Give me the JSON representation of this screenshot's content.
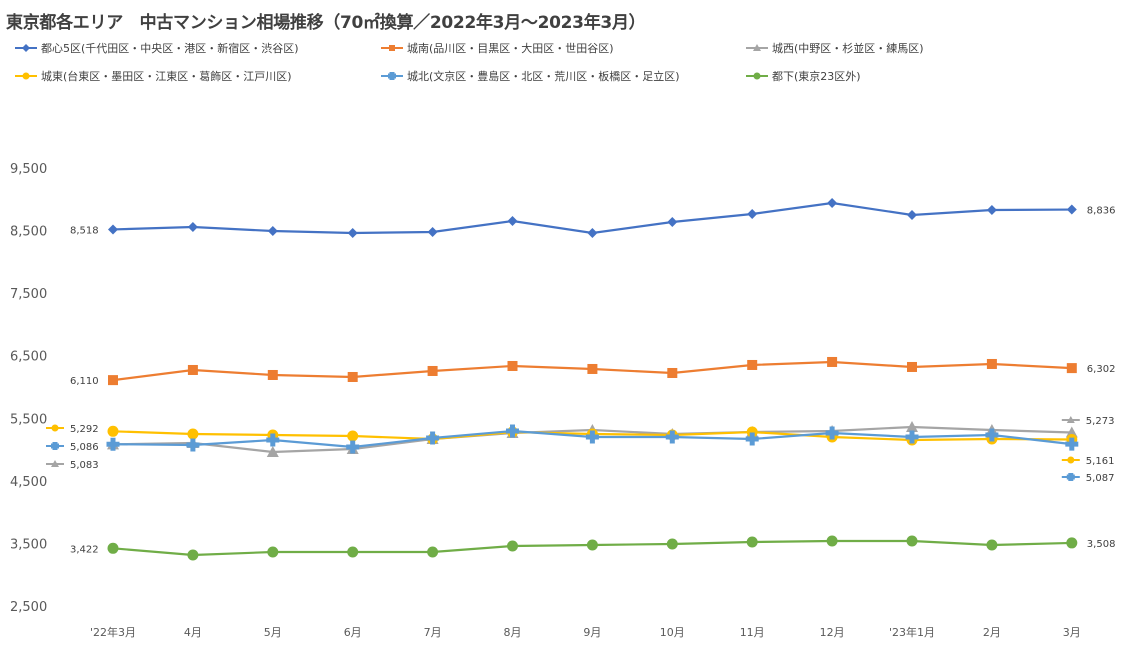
{
  "chart_data": {
    "type": "line",
    "title": "東京都各エリア　中古マンション相場推移（70㎡換算／2022年3月～2023年3月）",
    "xlabel": "",
    "ylabel": "",
    "categories": [
      "'22年3月",
      "4月",
      "5月",
      "6月",
      "7月",
      "8月",
      "9月",
      "10月",
      "11月",
      "12月",
      "'23年1月",
      "2月",
      "3月"
    ],
    "ylim": [
      2500,
      9500
    ],
    "yticks": [
      9500,
      8500,
      7500,
      6500,
      5500,
      4500,
      3500,
      2500
    ],
    "ytick_labels": [
      "9,500",
      "8,500",
      "7,500",
      "6,500",
      "5,500",
      "4,500",
      "3,500",
      "2,500"
    ],
    "grid": false,
    "legend_position": "top",
    "series": [
      {
        "name": "都心5区(千代田区・中央区・港区・新宿区・渋谷区)",
        "color": "#4472C4",
        "marker": "diamond",
        "values": [
          8518,
          8557,
          8493,
          8461,
          8477,
          8653,
          8461,
          8637,
          8765,
          8941,
          8749,
          8829,
          8836
        ],
        "first_label": "8,518",
        "last_label": "8,836"
      },
      {
        "name": "城南(品川区・目黒区・大田区・世田谷区)",
        "color": "#ED7D31",
        "marker": "square",
        "values": [
          6110,
          6272,
          6192,
          6160,
          6256,
          6336,
          6288,
          6224,
          6352,
          6400,
          6320,
          6368,
          6302
        ],
        "first_label": "6,110",
        "last_label": "6,302"
      },
      {
        "name": "城西(中野区・杉並区・練馬区)",
        "color": "#A5A5A5",
        "marker": "triangle",
        "values": [
          5083,
          5105,
          4961,
          5009,
          5169,
          5265,
          5313,
          5249,
          5281,
          5297,
          5361,
          5313,
          5273
        ],
        "first_label": "5,083",
        "last_label": "5,273"
      },
      {
        "name": "城東(台東区・墨田区・江東区・葛飾区・江戸川区)",
        "color": "#FFC000",
        "marker": "circle",
        "values": [
          5292,
          5249,
          5233,
          5217,
          5169,
          5280,
          5249,
          5233,
          5280,
          5201,
          5153,
          5169,
          5161
        ],
        "first_label": "5,292",
        "last_label": "5,161"
      },
      {
        "name": "城北(文京区・豊島区・北区・荒川区・板橋区・足立区)",
        "color": "#5B9BD5",
        "marker": "plus",
        "values": [
          5086,
          5073,
          5153,
          5041,
          5185,
          5297,
          5201,
          5201,
          5169,
          5265,
          5201,
          5233,
          5087
        ],
        "first_label": "5,086",
        "last_label": "5,087"
      },
      {
        "name": "都下(東京23区外)",
        "color": "#70AD47",
        "marker": "circle",
        "values": [
          3422,
          3315,
          3363,
          3363,
          3363,
          3459,
          3475,
          3491,
          3523,
          3539,
          3539,
          3475,
          3508
        ],
        "first_label": "3,422",
        "last_label": "3,508"
      }
    ]
  }
}
